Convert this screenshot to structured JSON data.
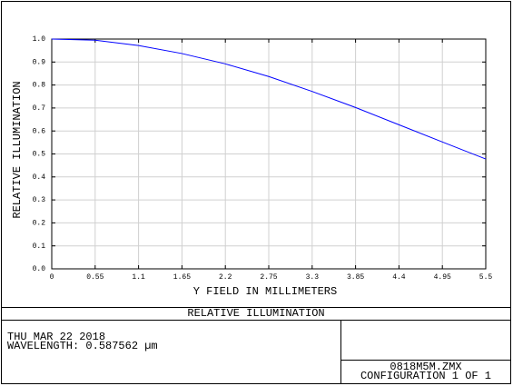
{
  "chart_data": {
    "type": "line",
    "xlabel": "Y FIELD IN MILLIMETERS",
    "ylabel": "RELATIVE ILLUMINATION",
    "x": [
      0,
      0.55,
      1.1,
      1.65,
      2.2,
      2.75,
      3.3,
      3.85,
      4.4,
      4.95,
      5.5
    ],
    "series": [
      {
        "color": "#0000ff",
        "values": [
          1.0,
          0.995,
          0.972,
          0.937,
          0.892,
          0.837,
          0.772,
          0.702,
          0.627,
          0.552,
          0.478
        ]
      }
    ],
    "xlim": [
      0,
      5.5
    ],
    "ylim": [
      0,
      1
    ],
    "xticks": [
      0,
      0.55,
      1.1,
      1.65,
      2.2,
      2.75,
      3.3,
      3.85,
      4.4,
      4.95,
      5.5
    ],
    "yticks": [
      {
        "value": 0,
        "label": "0.0"
      },
      0.1,
      0.2,
      0.3,
      0.4,
      0.5,
      0.6,
      0.7,
      0.8,
      0.9,
      {
        "value": 1,
        "label": "1.0"
      }
    ],
    "grid": true
  },
  "footer": {
    "title": "RELATIVE ILLUMINATION",
    "date": "THU MAR 22 2018",
    "wavelength": "WAVELENGTH: 0.587562 µm",
    "file": "0818M5M.ZMX",
    "configuration": "CONFIGURATION 1 OF 1"
  }
}
